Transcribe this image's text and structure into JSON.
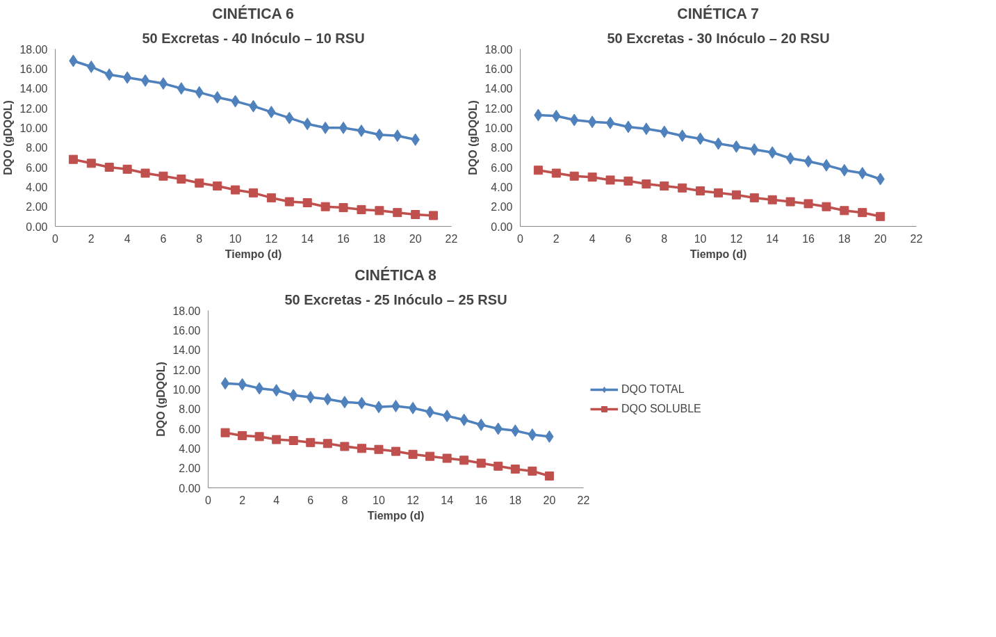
{
  "chart_data": [
    {
      "type": "line",
      "title": "CINÉTICA 6",
      "subtitle": "50 Excretas - 40 Inóculo – 10 RSU",
      "xlabel": "Tiempo (d)",
      "ylabel": "DQO (gDQOL)",
      "xlim": [
        0,
        22
      ],
      "xticks": [
        0,
        2,
        4,
        6,
        8,
        10,
        12,
        14,
        16,
        18,
        20,
        22
      ],
      "ylim": [
        0,
        18
      ],
      "yticks": [
        {
          "value": 0,
          "label": "0.00"
        },
        {
          "value": 2,
          "label": "2.00"
        },
        {
          "value": 4,
          "label": "4.00"
        },
        {
          "value": 6,
          "label": "6.00"
        },
        {
          "value": 8,
          "label": "8.00"
        },
        {
          "value": 10,
          "label": "10.00"
        },
        {
          "value": 12,
          "label": "12.00"
        },
        {
          "value": 14,
          "label": "14.00"
        },
        {
          "value": 16,
          "label": "16.00"
        },
        {
          "value": 18,
          "label": "18.00"
        }
      ],
      "grid": false,
      "legend": false,
      "series": [
        {
          "color": "#4f81bd",
          "marker": "diamond",
          "x": [
            1,
            2,
            3,
            4,
            5,
            6,
            7,
            8,
            9,
            10,
            11,
            12,
            13,
            14,
            15,
            16,
            17,
            18,
            19,
            20
          ],
          "values": [
            16.8,
            16.2,
            15.4,
            15.1,
            14.8,
            14.5,
            14.0,
            13.6,
            13.1,
            12.7,
            12.2,
            11.6,
            11.0,
            10.4,
            10.0,
            10.0,
            9.7,
            9.3,
            9.2,
            8.8
          ]
        },
        {
          "color": "#c0504d",
          "marker": "square",
          "x": [
            1,
            2,
            3,
            4,
            5,
            6,
            7,
            8,
            9,
            10,
            11,
            12,
            13,
            14,
            15,
            16,
            17,
            18,
            19,
            20,
            21
          ],
          "values": [
            6.8,
            6.4,
            6.0,
            5.8,
            5.4,
            5.1,
            4.8,
            4.4,
            4.1,
            3.7,
            3.4,
            2.9,
            2.5,
            2.4,
            2.0,
            1.9,
            1.7,
            1.6,
            1.4,
            1.2,
            1.1
          ]
        }
      ]
    },
    {
      "type": "line",
      "title": "CINÉTICA 7",
      "subtitle": "50 Excretas - 30 Inóculo – 20 RSU",
      "xlabel": "Tiempo (d)",
      "ylabel": "DQO (gDQOL)",
      "xlim": [
        0,
        22
      ],
      "xticks": [
        0,
        2,
        4,
        6,
        8,
        10,
        12,
        14,
        16,
        18,
        20,
        22
      ],
      "ylim": [
        0,
        18
      ],
      "yticks": [
        {
          "value": 0,
          "label": "0.00"
        },
        {
          "value": 2,
          "label": "2.00"
        },
        {
          "value": 4,
          "label": "4.00"
        },
        {
          "value": 6,
          "label": "6.00"
        },
        {
          "value": 8,
          "label": "8.00"
        },
        {
          "value": 10,
          "label": "10.00"
        },
        {
          "value": 12,
          "label": "12.00"
        },
        {
          "value": 14,
          "label": "14.00"
        },
        {
          "value": 16,
          "label": "16.00"
        },
        {
          "value": 18,
          "label": "18.00"
        }
      ],
      "grid": false,
      "legend": false,
      "series": [
        {
          "color": "#4f81bd",
          "marker": "diamond",
          "x": [
            1,
            2,
            3,
            4,
            5,
            6,
            7,
            8,
            9,
            10,
            11,
            12,
            13,
            14,
            15,
            16,
            17,
            18,
            19,
            20
          ],
          "values": [
            11.3,
            11.2,
            10.8,
            10.6,
            10.5,
            10.1,
            9.9,
            9.6,
            9.2,
            8.9,
            8.4,
            8.1,
            7.8,
            7.5,
            6.9,
            6.6,
            6.2,
            5.7,
            5.4,
            4.8
          ]
        },
        {
          "color": "#c0504d",
          "marker": "square",
          "x": [
            1,
            2,
            3,
            4,
            5,
            6,
            7,
            8,
            9,
            10,
            11,
            12,
            13,
            14,
            15,
            16,
            17,
            18,
            19,
            20
          ],
          "values": [
            5.7,
            5.4,
            5.1,
            5.0,
            4.7,
            4.6,
            4.3,
            4.1,
            3.9,
            3.6,
            3.4,
            3.2,
            2.9,
            2.7,
            2.5,
            2.3,
            2.0,
            1.6,
            1.4,
            1.0
          ]
        }
      ]
    },
    {
      "type": "line",
      "title": "CINÉTICA 8",
      "subtitle": "50 Excretas - 25 Inóculo – 25 RSU",
      "xlabel": "Tiempo (d)",
      "ylabel": "DQO (gDQOL)",
      "xlim": [
        0,
        22
      ],
      "xticks": [
        0,
        2,
        4,
        6,
        8,
        10,
        12,
        14,
        16,
        18,
        20,
        22
      ],
      "ylim": [
        0,
        18
      ],
      "yticks": [
        {
          "value": 0,
          "label": "0.00"
        },
        {
          "value": 2,
          "label": "2.00"
        },
        {
          "value": 4,
          "label": "4.00"
        },
        {
          "value": 6,
          "label": "6.00"
        },
        {
          "value": 8,
          "label": "8.00"
        },
        {
          "value": 10,
          "label": "10.00"
        },
        {
          "value": 12,
          "label": "12.00"
        },
        {
          "value": 14,
          "label": "14.00"
        },
        {
          "value": 16,
          "label": "16.00"
        },
        {
          "value": 18,
          "label": "18.00"
        }
      ],
      "grid": false,
      "legend": "right",
      "series": [
        {
          "name": "DQO TOTAL",
          "color": "#4f81bd",
          "marker": "diamond",
          "x": [
            1,
            2,
            3,
            4,
            5,
            6,
            7,
            8,
            9,
            10,
            11,
            12,
            13,
            14,
            15,
            16,
            17,
            18,
            19,
            20
          ],
          "values": [
            10.6,
            10.5,
            10.1,
            9.9,
            9.4,
            9.2,
            9.0,
            8.7,
            8.6,
            8.2,
            8.3,
            8.1,
            7.7,
            7.3,
            6.9,
            6.4,
            6.0,
            5.8,
            5.4,
            5.2
          ]
        },
        {
          "name": "DQO SOLUBLE",
          "color": "#c0504d",
          "marker": "square",
          "x": [
            1,
            2,
            3,
            4,
            5,
            6,
            7,
            8,
            9,
            10,
            11,
            12,
            13,
            14,
            15,
            16,
            17,
            18,
            19,
            20
          ],
          "values": [
            5.6,
            5.3,
            5.2,
            4.9,
            4.8,
            4.6,
            4.5,
            4.2,
            4.0,
            3.9,
            3.7,
            3.4,
            3.2,
            3.0,
            2.8,
            2.5,
            2.2,
            1.9,
            1.7,
            1.2
          ]
        }
      ]
    }
  ]
}
